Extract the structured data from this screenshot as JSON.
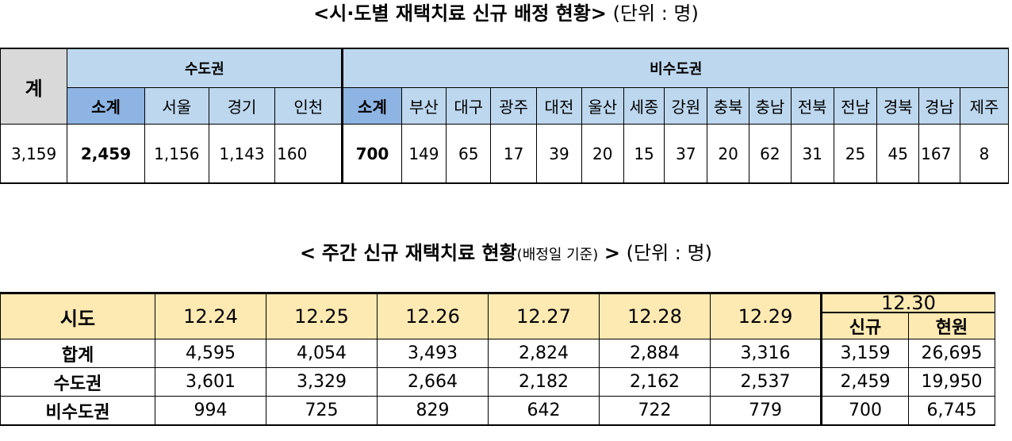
{
  "title1": {
    "main": "<시·도별 재택치료 신규 배정 현황>",
    "unit": "(단위 : 명)"
  },
  "table1": {
    "total_label": "계",
    "capital_label": "수도권",
    "noncapital_label": "비수도권",
    "capital_cols": [
      "소계",
      "서울",
      "경기",
      "인천"
    ],
    "noncapital_cols": [
      "소계",
      "부산",
      "대구",
      "광주",
      "대전",
      "울산",
      "세종",
      "강원",
      "충북",
      "충남",
      "전북",
      "전남",
      "경북",
      "경남",
      "제주"
    ],
    "total_value": "3,159",
    "capital_values": [
      "2,459",
      "1,156",
      "1,143",
      "160"
    ],
    "noncapital_values": [
      "700",
      "149",
      "65",
      "17",
      "39",
      "20",
      "15",
      "37",
      "20",
      "62",
      "31",
      "25",
      "45",
      "167",
      "8"
    ]
  },
  "title2": {
    "open": "<",
    "main": "주간 신규 재택치료 현황",
    "basis": "(배정일 기준)",
    "close": ">",
    "unit": "(단위 : 명)"
  },
  "table2": {
    "header_label": "시도",
    "dates": [
      "12.24",
      "12.25",
      "12.26",
      "12.27",
      "12.28",
      "12.29"
    ],
    "last_date": "12.30",
    "last_sub": [
      "신규",
      "현원"
    ],
    "rows": [
      {
        "label": "합계",
        "values": [
          "4,595",
          "4,054",
          "3,493",
          "2,824",
          "2,884",
          "3,316",
          "3,159",
          "26,695"
        ]
      },
      {
        "label": "수도권",
        "values": [
          "3,601",
          "3,329",
          "2,664",
          "2,182",
          "2,162",
          "2,537",
          "2,459",
          "19,950"
        ]
      },
      {
        "label": "비수도권",
        "values": [
          "994",
          "725",
          "829",
          "642",
          "722",
          "779",
          "700",
          "6,745"
        ]
      }
    ]
  }
}
